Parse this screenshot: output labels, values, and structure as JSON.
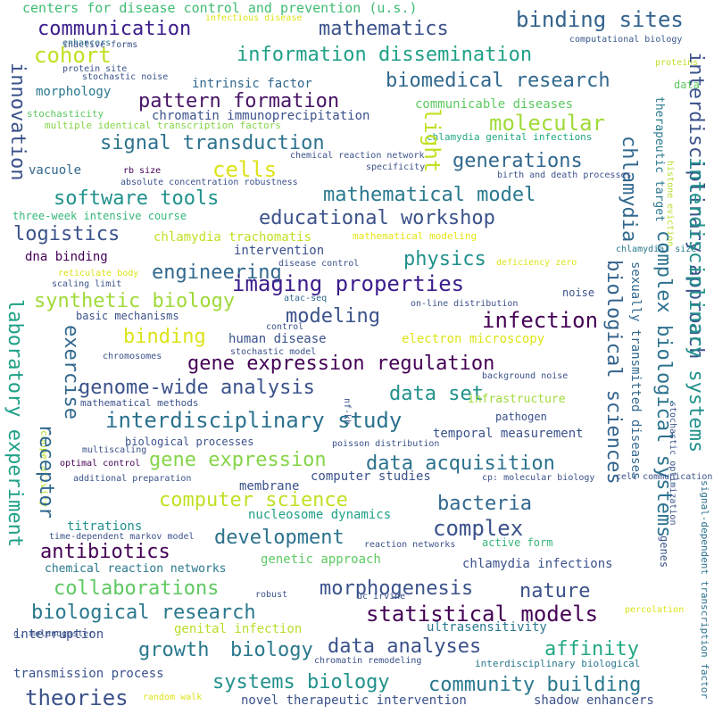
{
  "word_cloud": {
    "words": [
      {
        "text": "centers for disease control and prevention (u.s.)",
        "color": "#3fbc73"
      },
      {
        "text": "infectious disease",
        "color": "#dde318"
      },
      {
        "text": "communication",
        "color": "#3b1c8c"
      },
      {
        "text": "mathematics",
        "color": "#3b528b"
      },
      {
        "text": "binding sites",
        "color": "#33638d"
      },
      {
        "text": "enhancers",
        "color": "#2c728e"
      },
      {
        "text": "inactive forms",
        "color": "#3b528b"
      },
      {
        "text": "computational biology",
        "color": "#38598c"
      },
      {
        "text": "cohort",
        "color": "#c2df23"
      },
      {
        "text": "information dissemination",
        "color": "#1fa187"
      },
      {
        "text": "protein site",
        "color": "#3b528b"
      },
      {
        "text": "stochastic noise",
        "color": "#3b528b"
      },
      {
        "text": "proteins",
        "color": "#c2df23"
      },
      {
        "text": "morphology",
        "color": "#2a788e"
      },
      {
        "text": "intrinsic factor",
        "color": "#31688e"
      },
      {
        "text": "biomedical research",
        "color": "#31688e"
      },
      {
        "text": "data",
        "color": "#5ec962"
      },
      {
        "text": "innovation",
        "color": "#3b528b"
      },
      {
        "text": "pattern formation",
        "color": "#471365"
      },
      {
        "text": "stochasticity",
        "color": "#5ec962"
      },
      {
        "text": "chromatin immunoprecipitation",
        "color": "#3b528b"
      },
      {
        "text": "communicable diseases",
        "color": "#5ec962"
      },
      {
        "text": "multiple identical transcription factors",
        "color": "#86d549"
      },
      {
        "text": "molecular",
        "color": "#a0da39"
      },
      {
        "text": "chlamydia genital infections",
        "color": "#22a884"
      },
      {
        "text": "light",
        "color": "#c2df23"
      },
      {
        "text": "signal transduction",
        "color": "#2c728e"
      },
      {
        "text": "chlamydia",
        "color": "#31688e"
      },
      {
        "text": "interdisciplinary approach",
        "color": "#3b528b"
      },
      {
        "text": "chemical reaction network",
        "color": "#3b528b"
      },
      {
        "text": "generations",
        "color": "#31688e"
      },
      {
        "text": "cells",
        "color": "#dde318"
      },
      {
        "text": "vacuole",
        "color": "#31688e"
      },
      {
        "text": "rb size",
        "color": "#440154"
      },
      {
        "text": "specificity",
        "color": "#3b528b"
      },
      {
        "text": "birth and death processes",
        "color": "#3b528b"
      },
      {
        "text": "absolute concentration robustness",
        "color": "#3b528b"
      },
      {
        "text": "therapeutic target",
        "color": "#2a788e"
      },
      {
        "text": "histone eviction",
        "color": "#b5de2b"
      },
      {
        "text": "software tools",
        "color": "#21918c"
      },
      {
        "text": "mathematical model",
        "color": "#2a788e"
      },
      {
        "text": "three-week intensive course",
        "color": "#35b779"
      },
      {
        "text": "educational workshop",
        "color": "#3b528b"
      },
      {
        "text": "logistics",
        "color": "#3b528b"
      },
      {
        "text": "chlamydia trachomatis",
        "color": "#c2df23"
      },
      {
        "text": "mathematical modeling",
        "color": "#e5e419"
      },
      {
        "text": "chlamydial size",
        "color": "#2a788e"
      },
      {
        "text": "intervention",
        "color": "#3b528b"
      },
      {
        "text": "dna binding",
        "color": "#440154"
      },
      {
        "text": "physics",
        "color": "#21918c"
      },
      {
        "text": "deficiency zero",
        "color": "#dde318"
      },
      {
        "text": "disease control",
        "color": "#3b528b"
      },
      {
        "text": "reticulate body",
        "color": "#dde318"
      },
      {
        "text": "engineering",
        "color": "#31688e"
      },
      {
        "text": "scaling limit",
        "color": "#3b528b"
      },
      {
        "text": "imaging properties",
        "color": "#3b1c8c"
      },
      {
        "text": "atac-seq",
        "color": "#31688e"
      },
      {
        "text": "synthetic biology",
        "color": "#a0da39"
      },
      {
        "text": "noise",
        "color": "#3b528b"
      },
      {
        "text": "laboratory experiment",
        "color": "#1fa187"
      },
      {
        "text": "biological sciences",
        "color": "#33638d"
      },
      {
        "text": "complex biological systems",
        "color": "#2c728e"
      },
      {
        "text": "interdisciplinary systems",
        "color": "#21918c"
      },
      {
        "text": "on-line distribution",
        "color": "#3b528b"
      },
      {
        "text": "basic mechanisms",
        "color": "#3b528b"
      },
      {
        "text": "modeling",
        "color": "#3b528b"
      },
      {
        "text": "infection",
        "color": "#440154"
      },
      {
        "text": "sexually transmitted diseases",
        "color": "#31688e"
      },
      {
        "text": "control",
        "color": "#3b528b"
      },
      {
        "text": "binding",
        "color": "#dde318"
      },
      {
        "text": "human disease",
        "color": "#3b528b"
      },
      {
        "text": "electron microscopy",
        "color": "#dde318"
      },
      {
        "text": "exercise",
        "color": "#31688e"
      },
      {
        "text": "chromosomes",
        "color": "#3b528b"
      },
      {
        "text": "stochastic model",
        "color": "#3b528b"
      },
      {
        "text": "gene expression regulation",
        "color": "#440154"
      },
      {
        "text": "background noise",
        "color": "#3b528b"
      },
      {
        "text": "genome-wide analysis",
        "color": "#3b528b"
      },
      {
        "text": "data set",
        "color": "#21918c"
      },
      {
        "text": "infrastructure",
        "color": "#a0da39"
      },
      {
        "text": "mathematical methods",
        "color": "#3b528b"
      },
      {
        "text": "nf-kb",
        "color": "#3b528b"
      },
      {
        "text": "pathogen",
        "color": "#3b528b"
      },
      {
        "text": "interdisciplinary study",
        "color": "#2c728e"
      },
      {
        "text": "temporal measurement",
        "color": "#3b528b"
      },
      {
        "text": "cooperativity",
        "color": "#b5de2b"
      },
      {
        "text": "biological processes",
        "color": "#3b528b"
      },
      {
        "text": "poisson distribution",
        "color": "#3b528b"
      },
      {
        "text": "multiscaling",
        "color": "#3b528b"
      },
      {
        "text": "gene expression",
        "color": "#86d549"
      },
      {
        "text": "data acquisition",
        "color": "#2c728e"
      },
      {
        "text": "stochastic optimization",
        "color": "#3b528b"
      },
      {
        "text": "receptor",
        "color": "#31688e"
      },
      {
        "text": "optimal control",
        "color": "#440154"
      },
      {
        "text": "membrane",
        "color": "#3b528b"
      },
      {
        "text": "additional preparation",
        "color": "#3b528b"
      },
      {
        "text": "computer studies",
        "color": "#3b528b"
      },
      {
        "text": "cp: molecular biology",
        "color": "#3b528b"
      },
      {
        "text": "cell communication",
        "color": "#3b528b"
      },
      {
        "text": "computer science",
        "color": "#c2df23"
      },
      {
        "text": "bacteria",
        "color": "#31688e"
      },
      {
        "text": "nucleosome dynamics",
        "color": "#1fa187"
      },
      {
        "text": "titrations",
        "color": "#21918c"
      },
      {
        "text": "complex",
        "color": "#3b528b"
      },
      {
        "text": "time-dependent markov model",
        "color": "#3b528b"
      },
      {
        "text": "development",
        "color": "#2c728e"
      },
      {
        "text": "reaction networks",
        "color": "#3b528b"
      },
      {
        "text": "active form",
        "color": "#35b779"
      },
      {
        "text": "antibiotics",
        "color": "#440154"
      },
      {
        "text": "genetic approach",
        "color": "#5ec962"
      },
      {
        "text": "chemical reaction networks",
        "color": "#2a788e"
      },
      {
        "text": "chlamydia infections",
        "color": "#3b528b"
      },
      {
        "text": "genes",
        "color": "#3b528b"
      },
      {
        "text": "signal-dependent transcription factor",
        "color": "#2c728e"
      },
      {
        "text": "collaborations",
        "color": "#5ec962"
      },
      {
        "text": "morphogenesis",
        "color": "#3b528b"
      },
      {
        "text": "nature",
        "color": "#3b528b"
      },
      {
        "text": "robust",
        "color": "#3b528b"
      },
      {
        "text": "uc irvine",
        "color": "#3b528b"
      },
      {
        "text": "biological research",
        "color": "#2a788e"
      },
      {
        "text": "statistical models",
        "color": "#440154"
      },
      {
        "text": "percolation",
        "color": "#dde318"
      },
      {
        "text": "interruption",
        "color": "#3b528b"
      },
      {
        "text": "genital infection",
        "color": "#b5de2b"
      },
      {
        "text": "ultrasensitivity",
        "color": "#2a788e"
      },
      {
        "text": "d. melanogaster",
        "color": "#3b528b"
      },
      {
        "text": "growth",
        "color": "#2a788e"
      },
      {
        "text": "biology",
        "color": "#2a788e"
      },
      {
        "text": "data analyses",
        "color": "#3b528b"
      },
      {
        "text": "affinity",
        "color": "#22a884"
      },
      {
        "text": "chromatin remodeling",
        "color": "#3b528b"
      },
      {
        "text": "interdisciplinary biological",
        "color": "#2a788e"
      },
      {
        "text": "transmission process",
        "color": "#3b528b"
      },
      {
        "text": "systems biology",
        "color": "#21918c"
      },
      {
        "text": "community building",
        "color": "#2a788e"
      },
      {
        "text": "theories",
        "color": "#3b528b"
      },
      {
        "text": "random walk",
        "color": "#dde318"
      },
      {
        "text": "novel therapeutic intervention",
        "color": "#3b528b"
      },
      {
        "text": "shadow enhancers",
        "color": "#3b528b"
      }
    ]
  }
}
